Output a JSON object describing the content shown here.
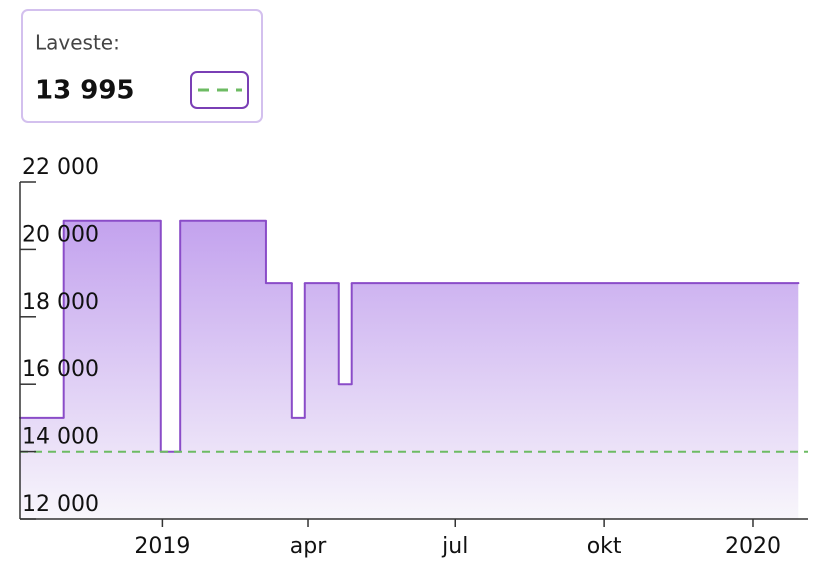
{
  "chart_data": {
    "type": "step-area",
    "x": [
      "2018-10-05",
      "2018-11-01",
      "2018-12-31",
      "2019-01-12",
      "2019-03-06",
      "2019-03-22",
      "2019-03-30",
      "2019-04-20",
      "2019-04-28",
      "2020-01-29"
    ],
    "series": [
      {
        "color": "#8a4cc8",
        "values": [
          15000,
          20850,
          13995,
          20850,
          19000,
          15000,
          19000,
          16000,
          19000,
          19000
        ]
      }
    ],
    "xlim": [
      "2018-10-05",
      "2020-02-04"
    ],
    "xticks": [
      {
        "value": "2019-01-01",
        "label": "2019"
      },
      {
        "value": "2019-04-01",
        "label": "apr"
      },
      {
        "value": "2019-07-01",
        "label": "jul"
      },
      {
        "value": "2019-10-01",
        "label": "okt"
      },
      {
        "value": "2020-01-01",
        "label": "2020"
      }
    ],
    "ylim": [
      12000,
      22000
    ],
    "yticks": [
      {
        "value": 12000,
        "label": "12 000"
      },
      {
        "value": 14000,
        "label": "14 000"
      },
      {
        "value": 16000,
        "label": "16 000"
      },
      {
        "value": 18000,
        "label": "18 000"
      },
      {
        "value": 20000,
        "label": "20 000"
      },
      {
        "value": 22000,
        "label": "22 000"
      }
    ],
    "reference_line": {
      "name": "Laveste:",
      "value": 13995,
      "value_label": "13 995",
      "color": "#6dbb63",
      "dashed": true
    }
  }
}
